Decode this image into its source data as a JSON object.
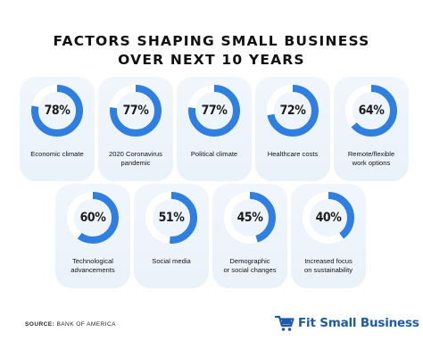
{
  "title": {
    "line1": "FACTORS SHAPING SMALL BUSINESS",
    "line2": "OVER NEXT 10 YEARS"
  },
  "colors": {
    "ring_fill": "#2f7fe0",
    "ring_track": "#ffffff",
    "card_background": "#eaf2fa",
    "brand": "#1e5aa8"
  },
  "chart_data": {
    "type": "donut",
    "title": "FACTORS SHAPING SMALL BUSINESS OVER NEXT 10 YEARS",
    "unit": "%",
    "items": [
      {
        "label": "Economic climate",
        "value": 78,
        "display": "78%"
      },
      {
        "label": "2020 Coronavirus\npandemic",
        "value": 77,
        "display": "77%"
      },
      {
        "label": "Political climate",
        "value": 77,
        "display": "77%"
      },
      {
        "label": "Healthcare costs",
        "value": 72,
        "display": "72%"
      },
      {
        "label": "Remote/flexible\nwork options",
        "value": 64,
        "display": "64%"
      },
      {
        "label": "Technological\nadvancements",
        "value": 60,
        "display": "60%"
      },
      {
        "label": "Social media",
        "value": 51,
        "display": "51%"
      },
      {
        "label": "Demographic\nor social changes",
        "value": 45,
        "display": "45%"
      },
      {
        "label": "Increased focus\non sustainability",
        "value": 40,
        "display": "40%"
      }
    ]
  },
  "footer": {
    "source_key": "SOURCE:",
    "source_value": "BANK OF AMERICA",
    "brand_name": "Fit Small Business",
    "brand_icon": "cart-icon"
  }
}
